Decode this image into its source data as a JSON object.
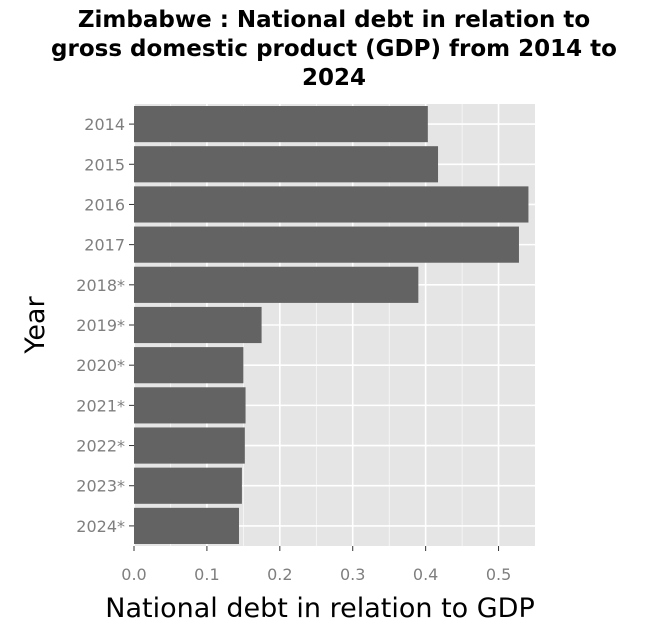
{
  "chart_data": {
    "type": "bar",
    "orientation": "horizontal",
    "title": "Zimbabwe : National debt in relation to gross domestic product (GDP) from 2014 to 2024",
    "title_lines": [
      "Zimbabwe : National debt in relation to",
      "gross domestic product (GDP) from 2014 to",
      "2024"
    ],
    "xlabel": "National debt in relation to GDP",
    "ylabel": "Year",
    "categories": [
      "2014",
      "2015",
      "2016",
      "2017",
      "2018*",
      "2019*",
      "2020*",
      "2021*",
      "2022*",
      "2023*",
      "2024*"
    ],
    "values": [
      0.403,
      0.417,
      0.541,
      0.528,
      0.39,
      0.175,
      0.15,
      0.153,
      0.152,
      0.148,
      0.144
    ],
    "xlim": [
      0,
      0.55
    ],
    "xticks": [
      0.0,
      0.1,
      0.2,
      0.3,
      0.4,
      0.5
    ],
    "xtick_labels": [
      "0.0",
      "0.1",
      "0.2",
      "0.3",
      "0.4",
      "0.5"
    ],
    "grid": true,
    "colors": {
      "bar": "#636363",
      "panel": "#e5e5e5",
      "grid_major": "#ffffff",
      "tick_text": "#7f7f7f"
    }
  }
}
